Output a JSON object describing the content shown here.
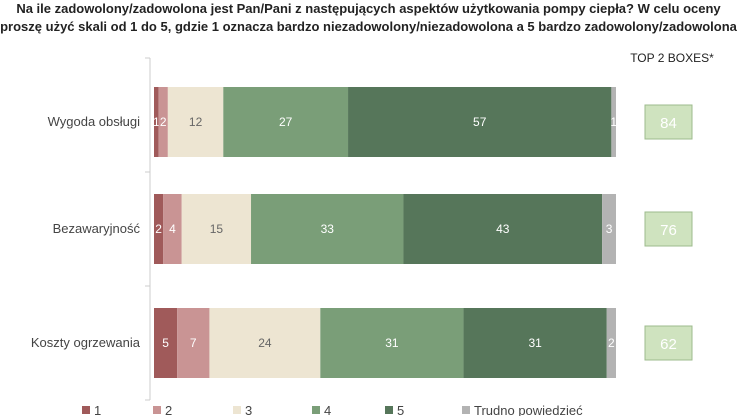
{
  "chart_data": {
    "type": "bar",
    "orientation": "horizontal-stacked-100",
    "title": "Na ile zadowolony/zadowolona jest Pan/Pani z następujących aspektów użytkowania pompy ciepła? W celu oceny proszę użyć skali od 1 do 5, gdzie 1 oznacza bardzo niezadowolony/niezadowolona a 5 bardzo zadowolony/zadowolona",
    "categories": [
      "Wygoda obsługi",
      "Bezawaryjność",
      "Koszty ogrzewania"
    ],
    "series": [
      {
        "name": "1",
        "color": "#a05a5a",
        "values": [
          1,
          2,
          5
        ]
      },
      {
        "name": "2",
        "color": "#c99494",
        "values": [
          2,
          4,
          7
        ]
      },
      {
        "name": "3",
        "color": "#ede5d2",
        "values": [
          12,
          15,
          24
        ]
      },
      {
        "name": "4",
        "color": "#7a9e78",
        "values": [
          27,
          33,
          31
        ]
      },
      {
        "name": "5",
        "color": "#56765a",
        "values": [
          57,
          43,
          31
        ]
      },
      {
        "name": "Trudno powiedzieć",
        "color": "#b3b3b3",
        "values": [
          1,
          3,
          2
        ]
      }
    ],
    "top2": {
      "label": "TOP 2 BOXES*",
      "values": [
        84,
        76,
        62
      ],
      "color": "#cfe3bf"
    },
    "xlim": [
      0,
      100
    ],
    "legend": "bottom"
  }
}
